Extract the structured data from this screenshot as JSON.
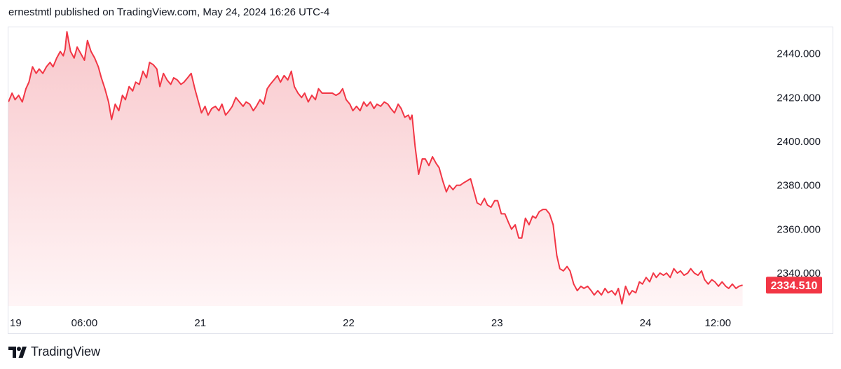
{
  "header": {
    "publisher_line": "ernestmtl published on TradingView.com, May 24, 2024 16:26 UTC-4"
  },
  "footer": {
    "brand": "TradingView",
    "logo_icon": "tradingview-logo-icon"
  },
  "colors": {
    "line": "#f23645",
    "fill_top": "#f8c8cc",
    "fill_bottom": "#fff5f6",
    "last_price_bg": "#f23645",
    "axis_text": "#131722"
  },
  "chart_data": {
    "type": "area",
    "title": "",
    "xlabel": "",
    "ylabel": "",
    "y_axis_position": "right",
    "grid": false,
    "ylim": [
      2325,
      2452
    ],
    "y_ticks": [
      2340,
      2360,
      2380,
      2400,
      2420,
      2440
    ],
    "y_tick_labels": [
      "2340.000",
      "2360.000",
      "2380.000",
      "2400.000",
      "2420.000",
      "2440.000"
    ],
    "x_range": [
      0,
      125
    ],
    "x_ticks": [
      {
        "x": 0,
        "label": "19"
      },
      {
        "x": 12.6,
        "label": "06:00"
      },
      {
        "x": 31.8,
        "label": "21"
      },
      {
        "x": 56.4,
        "label": "22"
      },
      {
        "x": 81,
        "label": "23"
      },
      {
        "x": 105.6,
        "label": "24"
      },
      {
        "x": 117.6,
        "label": "12:00"
      }
    ],
    "last_price": 2334.51,
    "last_price_label": "2334.510",
    "series": [
      {
        "x": [
          0,
          0.6,
          1.1,
          1.7,
          2.3,
          2.9,
          3.4,
          4.0,
          4.6,
          5.1,
          5.7,
          6.3,
          6.9,
          7.4,
          8.0,
          8.6,
          9.1,
          9.4,
          9.7,
          10.3,
          10.9,
          11.4,
          12.0,
          12.6,
          13.1,
          13.7,
          14.3,
          14.9,
          15.4,
          16.0,
          16.6,
          17.1,
          17.7,
          18.3,
          18.9,
          19.4,
          20.0,
          20.6,
          21.1,
          21.7,
          22.3,
          22.9,
          23.4,
          24.0,
          24.6,
          25.1,
          25.7,
          26.3,
          26.9,
          27.4,
          28.0,
          28.6,
          29.1,
          29.7,
          30.3,
          30.9,
          31.4,
          32.0,
          32.6,
          33.1,
          33.7,
          34.3,
          34.9,
          35.4,
          36.0,
          36.6,
          37.1,
          37.7,
          38.3,
          38.9,
          39.4,
          40.0,
          40.6,
          41.1,
          41.7,
          42.3,
          42.9,
          43.4,
          44.0,
          44.6,
          45.1,
          45.7,
          46.3,
          46.9,
          47.4,
          48.0,
          48.6,
          49.1,
          49.7,
          50.3,
          50.9,
          51.4,
          52.0,
          52.6,
          53.1,
          53.7,
          54.3,
          54.9,
          55.4,
          56.0,
          56.6,
          57.1,
          57.7,
          58.3,
          58.9,
          59.4,
          60.0,
          60.6,
          61.1,
          61.7,
          62.3,
          62.9,
          63.4,
          64.0,
          64.6,
          65.1,
          65.7,
          66.3,
          66.6,
          66.9,
          67.4,
          68.0,
          68.6,
          69.1,
          69.7,
          70.3,
          70.9,
          71.4,
          72.0,
          72.6,
          73.1,
          73.7,
          74.3,
          74.9,
          75.4,
          76.0,
          76.6,
          77.1,
          77.7,
          78.3,
          78.9,
          79.4,
          80.0,
          80.6,
          81.1,
          81.7,
          82.3,
          82.9,
          83.4,
          84.0,
          84.6,
          85.1,
          85.7,
          86.3,
          86.9,
          87.4,
          88.0,
          88.6,
          89.1,
          89.7,
          90.3,
          90.9,
          91.4,
          92.0,
          92.6,
          93.1,
          93.7,
          94.3,
          94.9,
          95.4,
          96.0,
          96.6,
          97.1,
          97.7,
          98.3,
          98.9,
          99.4,
          100.0,
          100.6,
          101.1,
          101.7,
          102.3,
          102.9,
          103.4,
          104.0,
          104.6,
          105.1,
          105.7,
          106.3,
          106.9,
          107.4,
          108.0,
          108.6,
          109.1,
          109.7,
          110.3,
          110.9,
          111.4,
          112.0,
          112.6,
          113.1,
          113.7,
          114.3,
          114.9,
          115.4,
          116.0,
          116.6,
          117.1,
          117.7,
          118.3,
          118.9,
          119.4,
          120.0,
          120.6,
          121.1,
          121.7
        ],
        "values": [
          2418,
          2422,
          2419,
          2421,
          2418,
          2424,
          2427,
          2434,
          2431,
          2433,
          2431,
          2434,
          2436,
          2434,
          2438,
          2441,
          2439,
          2442,
          2450,
          2441,
          2438,
          2443,
          2440,
          2437,
          2446,
          2441,
          2438,
          2434,
          2429,
          2424,
          2418,
          2410,
          2417,
          2414,
          2421,
          2419,
          2425,
          2423,
          2427,
          2426,
          2432,
          2429,
          2436,
          2435,
          2433,
          2425,
          2431,
          2428,
          2426,
          2429,
          2428,
          2426,
          2427,
          2429,
          2431,
          2424,
          2419,
          2413,
          2416,
          2412,
          2415,
          2416,
          2414,
          2417,
          2412,
          2414,
          2416,
          2420,
          2418,
          2416,
          2418,
          2417,
          2414,
          2416,
          2419,
          2417,
          2424,
          2426,
          2428,
          2430,
          2427,
          2430,
          2428,
          2432,
          2425,
          2422,
          2420,
          2422,
          2418,
          2421,
          2419,
          2424,
          2422,
          2422,
          2422,
          2422,
          2421,
          2422,
          2424,
          2419,
          2417,
          2414,
          2416,
          2414,
          2418,
          2416,
          2418,
          2415,
          2417,
          2416,
          2418,
          2417,
          2415,
          2413,
          2417,
          2415,
          2411,
          2412,
          2410,
          2412,
          2398,
          2385,
          2392,
          2392,
          2389,
          2393,
          2390,
          2388,
          2382,
          2377,
          2380,
          2378,
          2380,
          2380,
          2381,
          2382,
          2383,
          2378,
          2372,
          2371,
          2374,
          2371,
          2370,
          2373,
          2373,
          2367,
          2367,
          2363,
          2360,
          2362,
          2356,
          2356,
          2365,
          2362,
          2366,
          2365,
          2368,
          2369,
          2369,
          2367,
          2362,
          2348,
          2342,
          2341,
          2343,
          2341,
          2335,
          2332,
          2334,
          2333,
          2334,
          2332,
          2330,
          2332,
          2330,
          2333,
          2331,
          2332,
          2330,
          2333,
          2326,
          2334,
          2330,
          2332,
          2331,
          2336,
          2335,
          2338,
          2336,
          2340,
          2338,
          2340,
          2339,
          2340,
          2338,
          2342,
          2340,
          2341,
          2339,
          2340,
          2342,
          2340,
          2339,
          2341,
          2337,
          2335,
          2337,
          2336,
          2334,
          2336,
          2334,
          2333,
          2335,
          2333,
          2334,
          2334.51
        ]
      }
    ]
  }
}
